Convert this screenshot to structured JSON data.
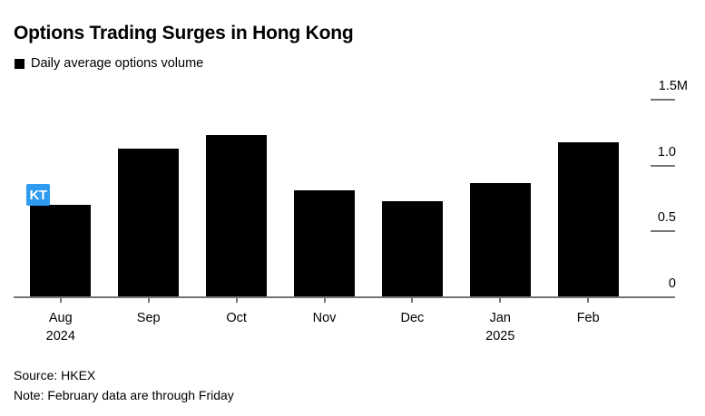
{
  "chart": {
    "title": "Options Trading Surges in Hong Kong",
    "legend": {
      "label": "Daily average options volume",
      "swatch_color": "#000000"
    },
    "source_line": "Source: HKEX",
    "note_line": "Note: February data are through Friday"
  },
  "overlay": {
    "marker_label": "KT",
    "marker_color": "#2e9bf0"
  },
  "colors": {
    "bar": "#000000",
    "axis": "#757575",
    "text": "#000000",
    "background": "#ffffff"
  },
  "chart_data": {
    "type": "bar",
    "title": "Options Trading Surges in Hong Kong",
    "series": [
      {
        "name": "Daily average options volume",
        "values": [
          0.7,
          1.13,
          1.23,
          0.81,
          0.73,
          0.87,
          1.18
        ]
      }
    ],
    "categories": [
      "Aug\n2024",
      "Sep",
      "Oct",
      "Nov",
      "Dec",
      "Jan\n2025",
      "Feb"
    ],
    "unit_suffix": "M",
    "xlabel": "",
    "ylabel": "",
    "ylim": [
      0,
      1.5
    ],
    "y_axis_side": "right",
    "grid": false,
    "legend_position": "top-left",
    "y_ticks": [
      {
        "label": "1.5M",
        "value": 1.5
      },
      {
        "label": "1.0",
        "value": 1.0
      },
      {
        "label": "0.5",
        "value": 0.5
      },
      {
        "label": "0",
        "value": 0
      }
    ]
  }
}
